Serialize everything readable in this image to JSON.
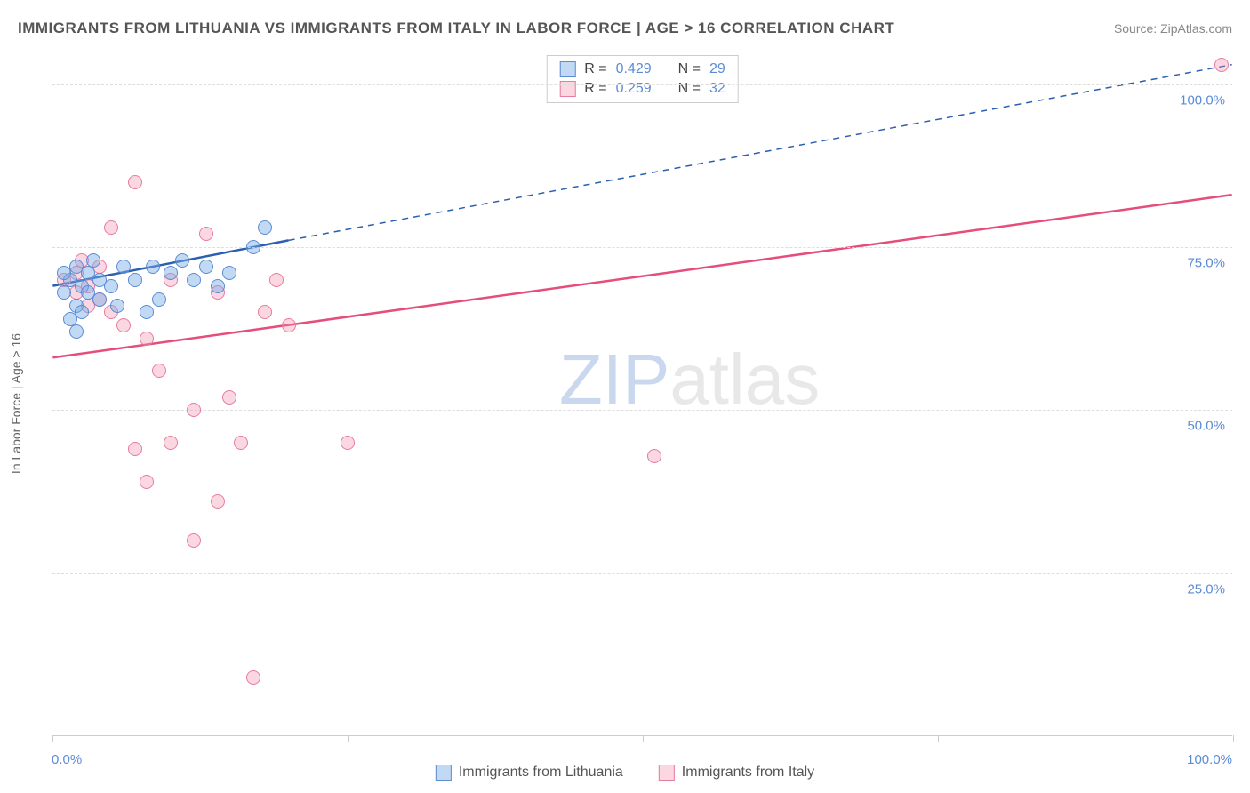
{
  "title": "IMMIGRANTS FROM LITHUANIA VS IMMIGRANTS FROM ITALY IN LABOR FORCE | AGE > 16 CORRELATION CHART",
  "source": "Source: ZipAtlas.com",
  "y_axis_label": "In Labor Force | Age > 16",
  "watermark_zip": "ZIP",
  "watermark_atlas": "atlas",
  "chart": {
    "type": "scatter",
    "xlim": [
      0,
      100
    ],
    "ylim": [
      0,
      105
    ],
    "x_ticks": [
      0,
      25,
      50,
      75,
      100
    ],
    "x_tick_labels": {
      "0": "0.0%",
      "100": "100.0%"
    },
    "y_gridlines": [
      25,
      50,
      75,
      100,
      105
    ],
    "y_tick_labels": {
      "25": "25.0%",
      "50": "50.0%",
      "75": "75.0%",
      "100": "100.0%"
    },
    "background_color": "#ffffff",
    "grid_color": "#dddddd",
    "axis_color": "#cccccc"
  },
  "series": {
    "lithuania": {
      "label": "Immigrants from Lithuania",
      "fill_color": "rgba(120,170,230,0.45)",
      "stroke_color": "#5b8bd4",
      "line_color": "#2b5fb0",
      "R": "0.429",
      "N": "29",
      "marker_radius": 8,
      "line_width": 2.5,
      "trend": {
        "x1": 0,
        "y1": 69,
        "x2_solid": 20,
        "y2_solid": 76,
        "x2": 100,
        "y2": 103
      },
      "points": [
        {
          "x": 1,
          "y": 68
        },
        {
          "x": 1.5,
          "y": 70
        },
        {
          "x": 2,
          "y": 72
        },
        {
          "x": 2.5,
          "y": 69
        },
        {
          "x": 3,
          "y": 71
        },
        {
          "x": 3.5,
          "y": 73
        },
        {
          "x": 4,
          "y": 67
        },
        {
          "x": 2,
          "y": 66
        },
        {
          "x": 1,
          "y": 71
        },
        {
          "x": 1.5,
          "y": 64
        },
        {
          "x": 2.5,
          "y": 65
        },
        {
          "x": 3,
          "y": 68
        },
        {
          "x": 4,
          "y": 70
        },
        {
          "x": 5,
          "y": 69
        },
        {
          "x": 5.5,
          "y": 66
        },
        {
          "x": 6,
          "y": 72
        },
        {
          "x": 7,
          "y": 70
        },
        {
          "x": 8,
          "y": 65
        },
        {
          "x": 8.5,
          "y": 72
        },
        {
          "x": 9,
          "y": 67
        },
        {
          "x": 10,
          "y": 71
        },
        {
          "x": 11,
          "y": 73
        },
        {
          "x": 12,
          "y": 70
        },
        {
          "x": 13,
          "y": 72
        },
        {
          "x": 14,
          "y": 69
        },
        {
          "x": 15,
          "y": 71
        },
        {
          "x": 17,
          "y": 75
        },
        {
          "x": 18,
          "y": 78
        },
        {
          "x": 2,
          "y": 62
        }
      ]
    },
    "italy": {
      "label": "Immigrants from Italy",
      "fill_color": "rgba(240,140,170,0.35)",
      "stroke_color": "#e87ba0",
      "line_color": "#e54d7b",
      "R": "0.259",
      "N": "32",
      "marker_radius": 8,
      "line_width": 2.5,
      "trend": {
        "x1": 0,
        "y1": 58,
        "x2": 100,
        "y2": 83
      },
      "points": [
        {
          "x": 1,
          "y": 70
        },
        {
          "x": 2,
          "y": 68
        },
        {
          "x": 2,
          "y": 71
        },
        {
          "x": 3,
          "y": 66
        },
        {
          "x": 3,
          "y": 69
        },
        {
          "x": 4,
          "y": 67
        },
        {
          "x": 4,
          "y": 72
        },
        {
          "x": 5,
          "y": 65
        },
        {
          "x": 5,
          "y": 78
        },
        {
          "x": 6,
          "y": 63
        },
        {
          "x": 7,
          "y": 85
        },
        {
          "x": 7,
          "y": 44
        },
        {
          "x": 8,
          "y": 61
        },
        {
          "x": 8,
          "y": 39
        },
        {
          "x": 9,
          "y": 56
        },
        {
          "x": 10,
          "y": 70
        },
        {
          "x": 10,
          "y": 45
        },
        {
          "x": 12,
          "y": 50
        },
        {
          "x": 12,
          "y": 30
        },
        {
          "x": 13,
          "y": 77
        },
        {
          "x": 14,
          "y": 68
        },
        {
          "x": 14,
          "y": 36
        },
        {
          "x": 15,
          "y": 52
        },
        {
          "x": 16,
          "y": 45
        },
        {
          "x": 17,
          "y": 9
        },
        {
          "x": 18,
          "y": 65
        },
        {
          "x": 19,
          "y": 70
        },
        {
          "x": 20,
          "y": 63
        },
        {
          "x": 25,
          "y": 45
        },
        {
          "x": 51,
          "y": 43
        },
        {
          "x": 99,
          "y": 103
        },
        {
          "x": 2.5,
          "y": 73
        }
      ]
    }
  },
  "stats_label_R": "R =",
  "stats_label_N": "N ="
}
